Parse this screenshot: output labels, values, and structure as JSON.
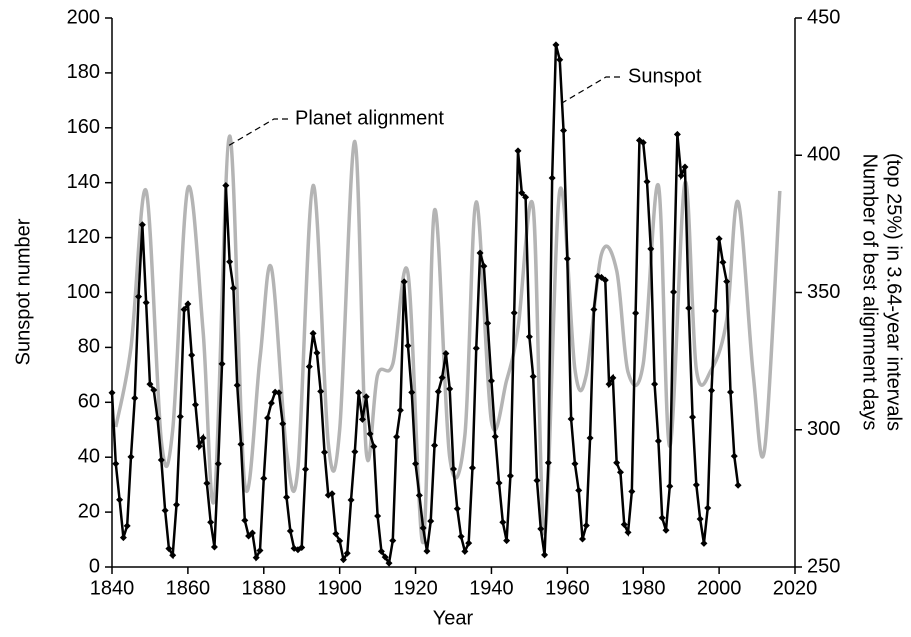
{
  "chart_data": {
    "type": "line",
    "xlabel": "Year",
    "ylabel": "Sunspot number",
    "y2label": [
      "Number of best alignment days",
      "(top 25%) in 3.64-year intervals"
    ],
    "xlim": [
      1840,
      2020
    ],
    "xticks": [
      1840,
      1860,
      1880,
      1900,
      1920,
      1940,
      1960,
      1980,
      2000,
      2020
    ],
    "ylim": [
      0,
      200
    ],
    "yticks": [
      0,
      20,
      40,
      60,
      80,
      100,
      120,
      140,
      160,
      180,
      200
    ],
    "y2lim": [
      250,
      450
    ],
    "y2ticks": [
      250,
      300,
      350,
      400,
      450
    ],
    "annotations": [
      {
        "text": "Planet alignment",
        "series": 1
      },
      {
        "text": "Sunspot",
        "series": 0
      }
    ],
    "series": [
      {
        "name": "Sunspot",
        "color": "#000000",
        "axis": "y",
        "markers": true,
        "x": [
          1840,
          1841,
          1842,
          1843,
          1844,
          1845,
          1846,
          1847,
          1848,
          1849,
          1850,
          1851,
          1852,
          1853,
          1854,
          1855,
          1856,
          1857,
          1858,
          1859,
          1860,
          1861,
          1862,
          1863,
          1864,
          1865,
          1866,
          1867,
          1868,
          1869,
          1870,
          1871,
          1872,
          1873,
          1874,
          1875,
          1876,
          1877,
          1878,
          1879,
          1880,
          1881,
          1882,
          1883,
          1884,
          1885,
          1886,
          1887,
          1888,
          1889,
          1890,
          1891,
          1892,
          1893,
          1894,
          1895,
          1896,
          1897,
          1898,
          1899,
          1900,
          1901,
          1902,
          1903,
          1904,
          1905,
          1906,
          1907,
          1908,
          1909,
          1910,
          1911,
          1912,
          1913,
          1914,
          1915,
          1916,
          1917,
          1918,
          1919,
          1920,
          1921,
          1922,
          1923,
          1924,
          1925,
          1926,
          1927,
          1928,
          1929,
          1930,
          1931,
          1932,
          1933,
          1934,
          1935,
          1936,
          1937,
          1938,
          1939,
          1940,
          1941,
          1942,
          1943,
          1944,
          1945,
          1946,
          1947,
          1948,
          1949,
          1950,
          1951,
          1952,
          1953,
          1954,
          1955,
          1956,
          1957,
          1958,
          1959,
          1960,
          1961,
          1962,
          1963,
          1964,
          1965,
          1966,
          1967,
          1968,
          1969,
          1970,
          1971,
          1972,
          1973,
          1974,
          1975,
          1976,
          1977,
          1978,
          1979,
          1980,
          1981,
          1982,
          1983,
          1984,
          1985,
          1986,
          1987,
          1988,
          1989,
          1990,
          1991,
          1992,
          1993,
          1994,
          1995,
          1996,
          1997,
          1998,
          1999,
          2000,
          2001,
          2002,
          2003,
          2004,
          2005
        ],
        "values": [
          63.5,
          37.6,
          24.5,
          10.7,
          15.0,
          40.1,
          61.5,
          98.5,
          124.7,
          96.3,
          66.6,
          64.5,
          54.1,
          39.0,
          20.6,
          6.7,
          4.3,
          22.7,
          54.8,
          93.8,
          95.8,
          77.2,
          59.1,
          44.0,
          47.0,
          30.5,
          16.3,
          7.3,
          37.6,
          74.0,
          139.0,
          111.2,
          101.6,
          66.2,
          44.7,
          17.0,
          11.3,
          12.4,
          3.4,
          6.0,
          32.3,
          54.3,
          59.7,
          63.7,
          63.5,
          52.2,
          25.4,
          13.1,
          6.8,
          6.3,
          7.1,
          35.6,
          73.0,
          85.1,
          78.0,
          64.0,
          41.8,
          26.2,
          26.7,
          12.1,
          9.5,
          2.7,
          5.0,
          24.4,
          42.0,
          63.5,
          53.8,
          62.0,
          48.5,
          43.9,
          18.6,
          5.7,
          3.6,
          1.4,
          9.6,
          47.4,
          57.1,
          103.9,
          80.6,
          63.6,
          37.6,
          26.1,
          14.2,
          5.8,
          16.7,
          44.3,
          63.9,
          69.0,
          77.8,
          64.9,
          35.7,
          21.2,
          11.1,
          5.7,
          8.7,
          36.1,
          79.7,
          114.4,
          109.6,
          88.8,
          67.8,
          47.5,
          30.6,
          16.3,
          9.6,
          33.2,
          92.6,
          151.6,
          136.3,
          134.7,
          83.9,
          69.4,
          31.5,
          13.9,
          4.4,
          38.0,
          141.7,
          190.2,
          184.8,
          159.0,
          112.3,
          53.9,
          37.6,
          27.9,
          10.2,
          15.1,
          47.0,
          93.8,
          105.9,
          105.5,
          104.5,
          66.6,
          68.9,
          38.0,
          34.5,
          15.5,
          12.6,
          27.5,
          92.5,
          155.4,
          154.6,
          140.4,
          115.9,
          66.6,
          45.9,
          17.9,
          13.4,
          29.4,
          100.2,
          157.6,
          142.6,
          145.7,
          94.3,
          54.6,
          29.9,
          17.5,
          8.6,
          21.5,
          64.3,
          93.3,
          119.6,
          111.0,
          104.0,
          63.7,
          40.4,
          29.8
        ]
      },
      {
        "name": "Planet alignment",
        "color": "#b4b4b4",
        "axis": "y2",
        "markers": false,
        "x": [
          1841,
          1845,
          1849,
          1853,
          1856,
          1860,
          1864,
          1867,
          1871,
          1875,
          1879,
          1882,
          1886,
          1889,
          1893,
          1897,
          1900,
          1904,
          1907,
          1910,
          1914,
          1918,
          1922,
          1925,
          1929,
          1933,
          1936,
          1940,
          1944,
          1947,
          1951,
          1954,
          1958,
          1962,
          1965,
          1969,
          1973,
          1976,
          1980,
          1984,
          1987,
          1991,
          1994,
          1998,
          2002,
          2005,
          2009,
          2012,
          2016
        ],
        "values": [
          301,
          330,
          387,
          296,
          300,
          388,
          336,
          275,
          407,
          280,
          326,
          359,
          292,
          286,
          389,
          295,
          300,
          405,
          292,
          320,
          324,
          357,
          259,
          380,
          290,
          298,
          383,
          303,
          318,
          337,
          381,
          262,
          387,
          322,
          320,
          364,
          358,
          321,
          324,
          389,
          294,
          390,
          322,
          322,
          340,
          383,
          320,
          293,
          387
        ]
      }
    ]
  }
}
